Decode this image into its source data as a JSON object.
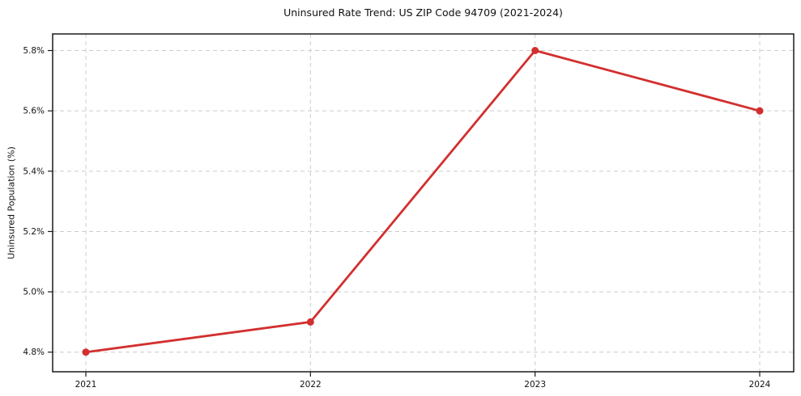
{
  "chart": {
    "title": "Uninsured Rate Trend: US ZIP Code 94709 (2021-2024)",
    "ylabel": "Uninsured Population (%)"
  },
  "chart_data": {
    "type": "line",
    "title": "Uninsured Rate Trend: US ZIP Code 94709 (2021-2024)",
    "xlabel": "",
    "ylabel": "Uninsured Population (%)",
    "categories": [
      "2021",
      "2022",
      "2023",
      "2024"
    ],
    "x": [
      2021,
      2022,
      2023,
      2024
    ],
    "series": [
      {
        "name": "Uninsured Rate",
        "values": [
          4.8,
          4.9,
          5.8,
          5.6
        ],
        "color": "#d32f2f",
        "marker": "circle"
      }
    ],
    "yticks": [
      4.8,
      5.0,
      5.2,
      5.4,
      5.6,
      5.8
    ],
    "ytick_labels": [
      "4.8%",
      "5.0%",
      "5.2%",
      "5.4%",
      "5.6%",
      "5.8%"
    ],
    "xtick_labels": [
      "2021",
      "2022",
      "2023",
      "2024"
    ],
    "ylim": [
      4.735,
      5.855
    ],
    "grid": true,
    "grid_style": "dashed",
    "legend": "none",
    "colors": {
      "line": "#d32f2f",
      "grid": "#cccccc",
      "spine": "#1a1a1a",
      "tick_text": "#111111",
      "background": "#ffffff"
    }
  }
}
